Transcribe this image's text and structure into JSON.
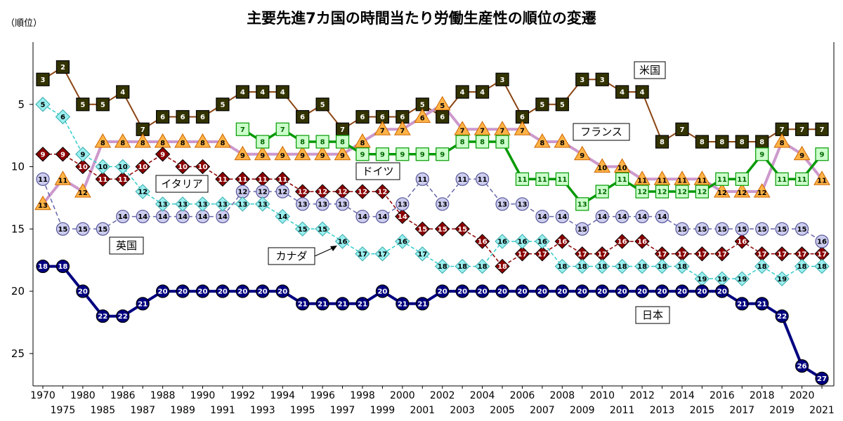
{
  "chart_data": {
    "type": "line",
    "title": "主要先進7カ国の時間当たり労働生産性の順位の変遷",
    "ylabel": "（順位）",
    "xlabel": "",
    "ylim": [
      27.6,
      0
    ],
    "yticks": [
      5,
      10,
      15,
      20,
      25
    ],
    "grid": false,
    "x": [
      "1970",
      "1975",
      "1980",
      "1985",
      "1986",
      "1987",
      "1988",
      "1989",
      "1990",
      "1991",
      "1992",
      "1993",
      "1994",
      "1995",
      "1996",
      "1997",
      "1998",
      "1999",
      "2000",
      "2001",
      "2002",
      "2003",
      "2004",
      "2005",
      "2006",
      "2007",
      "2008",
      "2009",
      "2010",
      "2011",
      "2012",
      "2013",
      "2014",
      "2015",
      "2016",
      "2017",
      "2018",
      "2019",
      "2020",
      "2021"
    ],
    "series": [
      {
        "name": "米国",
        "color": "#8B4513",
        "marker": "square",
        "fill": "#333300",
        "text": "#ffffff",
        "dash": "",
        "width": 2,
        "values": [
          3,
          2,
          5,
          5,
          4,
          7,
          6,
          6,
          6,
          5,
          4,
          4,
          4,
          6,
          5,
          7,
          6,
          6,
          6,
          5,
          6,
          4,
          4,
          3,
          6,
          5,
          5,
          3,
          3,
          4,
          4,
          8,
          7,
          8,
          8,
          8,
          8,
          7,
          7,
          7
        ]
      },
      {
        "name": "フランス",
        "color": "#CC99CC",
        "marker": "triangle",
        "fill": "#FFB347",
        "text": "#000000",
        "dash": "",
        "width": 4,
        "values": [
          13,
          11,
          12,
          8,
          8,
          8,
          8,
          8,
          8,
          8,
          9,
          9,
          9,
          9,
          9,
          9,
          8,
          7,
          7,
          6,
          5,
          7,
          7,
          7,
          7,
          8,
          8,
          9,
          10,
          10,
          11,
          11,
          11,
          11,
          12,
          12,
          12,
          8,
          9,
          11
        ]
      },
      {
        "name": "ドイツ",
        "color": "#009900",
        "marker": "square-light",
        "fill": "#CCFFCC",
        "text": "#006600",
        "dash": "",
        "width": 3.5,
        "values": [
          null,
          null,
          null,
          null,
          null,
          null,
          null,
          null,
          null,
          null,
          7,
          8,
          7,
          8,
          8,
          8,
          9,
          9,
          9,
          9,
          9,
          8,
          8,
          8,
          11,
          11,
          11,
          13,
          12,
          11,
          12,
          12,
          12,
          12,
          11,
          11,
          9,
          11,
          11,
          9
        ]
      },
      {
        "name": "イタリア",
        "color": "#8B0000",
        "marker": "diamond",
        "fill": "#8B0000",
        "text": "#ffffff",
        "dash": "5,3",
        "width": 1.5,
        "values": [
          9,
          9,
          10,
          11,
          11,
          10,
          9,
          10,
          10,
          11,
          11,
          11,
          11,
          12,
          12,
          12,
          12,
          12,
          14,
          15,
          15,
          15,
          16,
          18,
          17,
          17,
          16,
          17,
          17,
          16,
          16,
          17,
          17,
          17,
          17,
          16,
          17,
          17,
          17,
          17
        ]
      },
      {
        "name": "英国",
        "color": "#6666AA",
        "marker": "circle",
        "fill": "#CCCCEE",
        "text": "#000000",
        "dash": "6,4",
        "width": 1.5,
        "values": [
          11,
          15,
          15,
          15,
          14,
          14,
          14,
          14,
          14,
          14,
          12,
          12,
          12,
          13,
          13,
          13,
          14,
          14,
          13,
          11,
          13,
          11,
          11,
          13,
          13,
          14,
          14,
          15,
          14,
          14,
          14,
          14,
          15,
          15,
          15,
          15,
          15,
          15,
          15,
          16
        ]
      },
      {
        "name": "カナダ",
        "color": "#33CCCC",
        "marker": "diamond-light",
        "fill": "#99EEEE",
        "text": "#000000",
        "dash": "5,3",
        "width": 1.5,
        "values": [
          5,
          6,
          9,
          10,
          10,
          12,
          13,
          13,
          13,
          13,
          13,
          13,
          14,
          15,
          15,
          16,
          17,
          17,
          16,
          17,
          18,
          18,
          18,
          16,
          16,
          16,
          18,
          18,
          18,
          18,
          18,
          18,
          18,
          19,
          19,
          19,
          18,
          19,
          18,
          18
        ]
      },
      {
        "name": "日本",
        "color": "#000080",
        "marker": "circle",
        "fill": "#000080",
        "text": "#ffffff",
        "dash": "",
        "width": 4,
        "values": [
          18,
          18,
          20,
          22,
          22,
          21,
          20,
          20,
          20,
          20,
          20,
          20,
          20,
          21,
          21,
          21,
          21,
          20,
          21,
          21,
          20,
          20,
          20,
          20,
          20,
          20,
          20,
          20,
          20,
          20,
          20,
          20,
          20,
          20,
          20,
          21,
          21,
          22,
          26,
          27
        ]
      }
    ]
  },
  "callouts": {
    "usa": "米国",
    "france": "フランス",
    "germany": "ドイツ",
    "italy": "イタリア",
    "uk": "英国",
    "canada": "カナダ",
    "japan": "日本"
  }
}
